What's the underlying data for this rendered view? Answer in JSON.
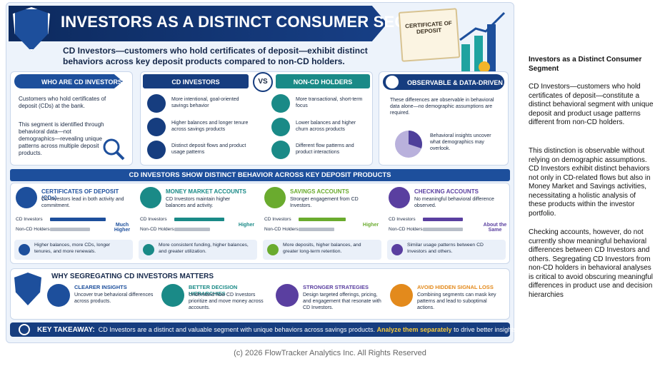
{
  "header": {
    "title": "INVESTORS AS A DISTINCT CONSUMER SEGMENT",
    "subtitle": "CD Investors—customers who hold certificates of deposit—exhibit distinct behaviors across key deposit products compared to non-CD holders.",
    "certificate": "CERTIFICATE OF DEPOSIT"
  },
  "who": {
    "title": "WHO ARE CD INVESTORS?",
    "text1": "Customers who hold certificates of deposit (CDs) at the bank.",
    "text2": "This segment is identified through behavioral data—not demographics—revealing unique patterns across multiple deposit products."
  },
  "compare": {
    "left_title": "CD INVESTORS",
    "vs": "VS",
    "right_title": "NON-CD HOLDERS",
    "left": [
      "More intentional, goal-oriented savings behavior",
      "Higher balances and longer tenure across savings products",
      "Distinct deposit flows and product usage patterns"
    ],
    "right": [
      "More transactional, short-term focus",
      "Lower balances and higher churn across products",
      "Different flow patterns and product interactions"
    ]
  },
  "observable": {
    "title": "OBSERVABLE & DATA-DRIVEN",
    "text1": "These differences are observable in behavioral data alone—no demographic assumptions are required.",
    "text2": "Behavioral insights uncover what demographics may overlook."
  },
  "products": {
    "title": "CD INVESTORS SHOW DISTINCT BEHAVIOR ACROSS KEY DEPOSIT PRODUCTS",
    "bar_labels": [
      "CD Investors",
      "Non-CD Holders"
    ],
    "items": [
      {
        "name": "CERTIFICATES OF DEPOSIT (CDs)",
        "text": "CD Investors lead in both activity and commitment.",
        "indicator": "Much Higher",
        "note": "Higher balances, more CDs, longer tenures, and more renewals."
      },
      {
        "name": "MONEY MARKET ACCOUNTS",
        "text": "CD Investors maintain higher balances and activity.",
        "indicator": "Higher",
        "note": "More consistent funding, higher balances, and greater utilization."
      },
      {
        "name": "SAVINGS ACCOUNTS",
        "text": "Stronger engagement from CD Investors.",
        "indicator": "Higher",
        "note": "More deposits, higher balances, and greater long-term retention."
      },
      {
        "name": "CHECKING ACCOUNTS",
        "text": "No meaningful behavioral difference observed.",
        "indicator": "About the Same",
        "note": "Similar usage patterns between CD Investors and others."
      }
    ]
  },
  "why": {
    "title": "WHY SEGREGATING CD INVESTORS MATTERS",
    "items": [
      {
        "title": "CLEARER INSIGHTS",
        "text": "Uncover true behavioral differences across products."
      },
      {
        "title": "BETTER DECISION HIERARCHIES",
        "text": "Understand how CD Investors prioritize and move money across accounts."
      },
      {
        "title": "STRONGER STRATEGIES",
        "text": "Design targeted offerings, pricing, and engagement that resonate with CD Investors."
      },
      {
        "title": "AVOID HIDDEN SIGNAL LOSS",
        "text": "Combining segments can mask key patterns and lead to suboptimal actions."
      }
    ]
  },
  "takeaway": {
    "label": "KEY TAKEAWAY:",
    "text": "CD Investors are a distinct and valuable segment with unique behaviors across savings products.",
    "highlight": "Analyze them separately",
    "rest": "to drive better insights and outcomes."
  },
  "sidebar": {
    "title": "Investors as a Distinct Consumer Segment",
    "paragraphs": [
      "CD Investors—customers who hold certificates of deposit—constitute a distinct behavioral segment with unique deposit and product usage patterns different from non-CD holders.",
      "This distinction is observable without relying on demographic assumptions. CD Investors exhibit distinct behaviors not only in CD-related flows but also in Money Market and Savings activities, necessitating a holistic analysis of these products within the investor portfolio.",
      "Checking accounts, however, do not currently show meaningful behavioral differences between CD Investors and others. Segregating CD Investors from non-CD holders in behavioral analyses is critical to avoid obscuring meaningful differences in product use and decision hierarchies"
    ]
  },
  "footer": "(c) 2026 FlowTracker Analytics Inc. All Rights Reserved"
}
